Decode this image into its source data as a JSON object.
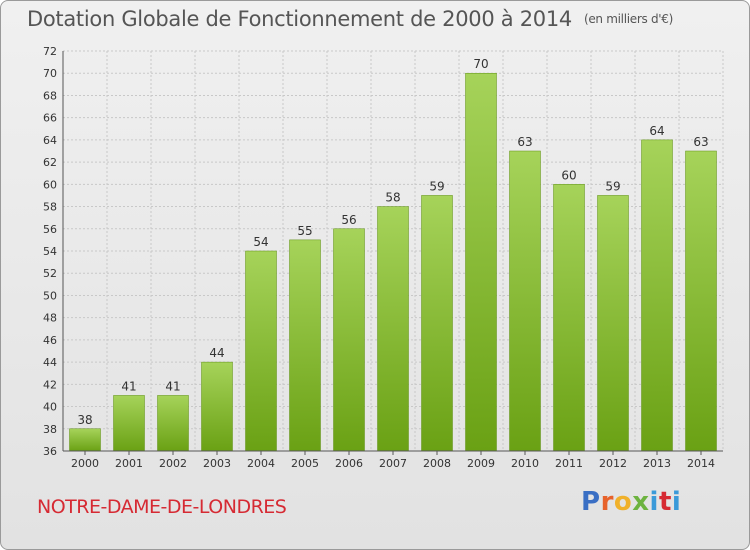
{
  "header": {
    "title": "Dotation Globale de Fonctionnement de 2000 à 2014",
    "unit": "(en milliers d'€)"
  },
  "footer": {
    "commune": "NOTRE-DAME-DE-LONDRES",
    "logo": "Proxiti"
  },
  "colors": {
    "bar_light": "#a6d35a",
    "bar_dark": "#6aa114",
    "grid": "#c8c8c8",
    "axis_text": "#333333",
    "commune": "#d62a33"
  },
  "chart_data": {
    "type": "bar",
    "title": "Dotation Globale de Fonctionnement de 2000 à 2014",
    "subtitle": "(en milliers d'€)",
    "categories": [
      "2000",
      "2001",
      "2002",
      "2003",
      "2004",
      "2005",
      "2006",
      "2007",
      "2008",
      "2009",
      "2010",
      "2011",
      "2012",
      "2013",
      "2014"
    ],
    "values": [
      38,
      41,
      41,
      44,
      54,
      55,
      56,
      58,
      59,
      70,
      63,
      60,
      59,
      64,
      63
    ],
    "ylim": [
      36,
      72
    ],
    "ytick_step": 2,
    "grid": true,
    "legend": "none"
  }
}
